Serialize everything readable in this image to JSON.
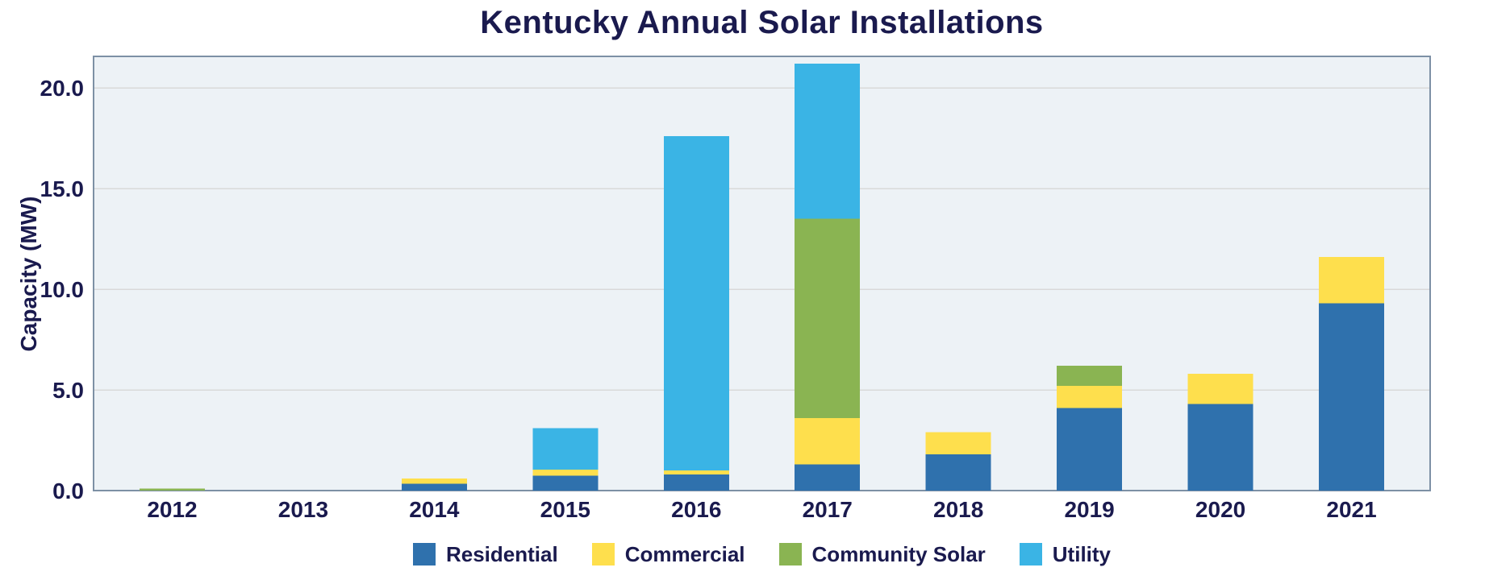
{
  "chart_data": {
    "type": "bar",
    "stacked": true,
    "title": "Kentucky Annual Solar Installations",
    "ylabel": "Capacity (MW)",
    "categories": [
      "2012",
      "2013",
      "2014",
      "2015",
      "2016",
      "2017",
      "2018",
      "2019",
      "2020",
      "2021"
    ],
    "series": [
      {
        "name": "Residential",
        "color": "#2f71ad",
        "values": [
          0,
          0,
          0.35,
          0.75,
          0.8,
          1.3,
          1.8,
          4.1,
          4.3,
          9.3
        ]
      },
      {
        "name": "Commercial",
        "color": "#fedf4d",
        "values": [
          0,
          0,
          0.25,
          0.3,
          0.2,
          2.3,
          1.1,
          1.1,
          1.5,
          2.3
        ]
      },
      {
        "name": "Community Solar",
        "color": "#8ab452",
        "values": [
          0.1,
          0,
          0,
          0,
          0,
          9.9,
          0,
          1.0,
          0,
          0
        ]
      },
      {
        "name": "Utility",
        "color": "#3ab4e5",
        "values": [
          0,
          0,
          0,
          2.05,
          16.6,
          7.7,
          0,
          0,
          0,
          0
        ]
      }
    ],
    "yticks": [
      0,
      5,
      10,
      15,
      20
    ],
    "ytick_labels": [
      "0.0",
      "5.0",
      "10.0",
      "15.0",
      "20.0"
    ],
    "ylim": [
      0,
      21.56
    ],
    "grid": true,
    "legend_position": "bottom",
    "colors": {
      "text": "#1a1a4e",
      "plot_bg": "#edf2f6",
      "gridline": "#d9d9d9",
      "border": "#7d90a5"
    }
  }
}
